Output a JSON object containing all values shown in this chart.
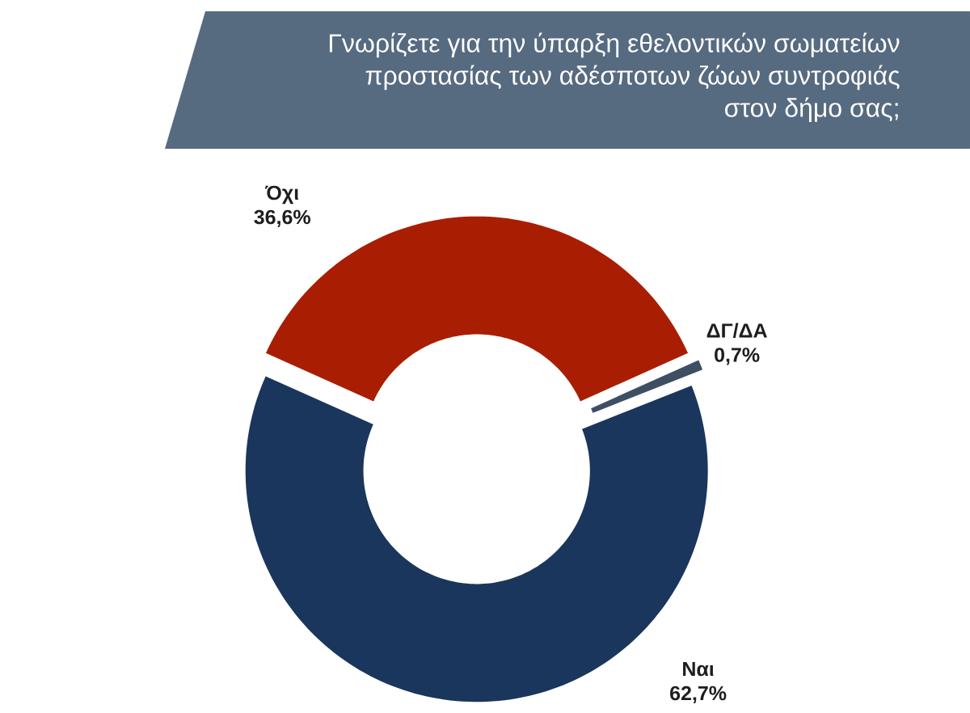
{
  "chart_data": {
    "type": "donut",
    "title": "Γνωρίζετε για την ύπαρξη εθελοντικών σωματείων προστασίας των αδέσποτων ζώων συντροφιάς στον δήμο σας;",
    "categories": [
      "Όχι",
      "ΔΓ/ΔΑ",
      "Ναι"
    ],
    "values": [
      36.6,
      0.7,
      62.7
    ],
    "colors": [
      "#a91e02",
      "#3f4f63",
      "#1a365c"
    ],
    "value_labels": [
      "36,6%",
      "0,7%",
      "62,7%"
    ]
  }
}
